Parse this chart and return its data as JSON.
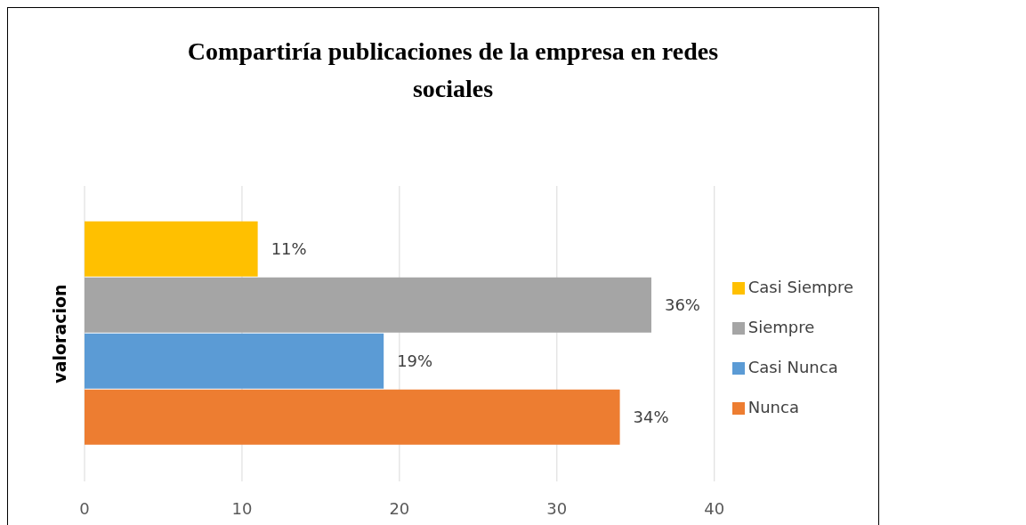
{
  "chart_data": {
    "type": "bar",
    "orientation": "horizontal",
    "title": "Compartiría publicaciones de la empresa en redes sociales",
    "ylabel": "valoracion",
    "categories": [
      null
    ],
    "series": [
      {
        "name": "Casi Siempre",
        "color": "#ffc000",
        "values": [
          11
        ],
        "value_labels": [
          "11%"
        ]
      },
      {
        "name": "Siempre",
        "color": "#a5a5a5",
        "values": [
          36
        ],
        "value_labels": [
          "36%"
        ]
      },
      {
        "name": "Casi Nunca",
        "color": "#5b9bd5",
        "values": [
          19
        ],
        "value_labels": [
          "19%"
        ]
      },
      {
        "name": "Nunca",
        "color": "#ed7d31",
        "values": [
          34
        ],
        "value_labels": [
          "34%"
        ]
      }
    ],
    "xlim": [
      0,
      40
    ],
    "xticks": [
      0,
      10,
      20,
      30,
      40
    ],
    "grid": "x",
    "legend": "right"
  }
}
